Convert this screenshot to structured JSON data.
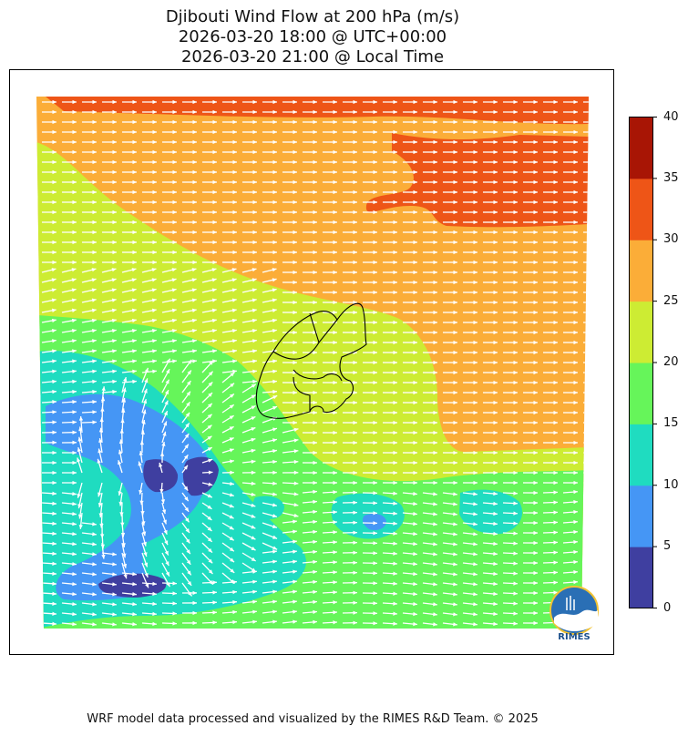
{
  "title": {
    "line1": "Djibouti Wind Flow at 200 hPa (m/s)",
    "line2": "2026-03-20 18:00 @ UTC+00:00",
    "line3": "2026-03-20 21:00 @ Local Time"
  },
  "colorbar": {
    "ticks": [
      "0",
      "5",
      "10",
      "15",
      "20",
      "25",
      "30",
      "35",
      "40"
    ],
    "colors": [
      "#3f3fa0",
      "#4596f5",
      "#1fdcc0",
      "#66f55a",
      "#cdec33",
      "#fbad38",
      "#ee5517",
      "#a81505"
    ]
  },
  "map": {
    "region": "Djibouti",
    "wind_direction": "westerly",
    "arrow_color": "#ffffff",
    "border_color": "#000000"
  },
  "logo": {
    "text": "RIMES"
  },
  "footer": "WRF model data processed and visualized by the RIMES R&D Team. © 2025"
}
